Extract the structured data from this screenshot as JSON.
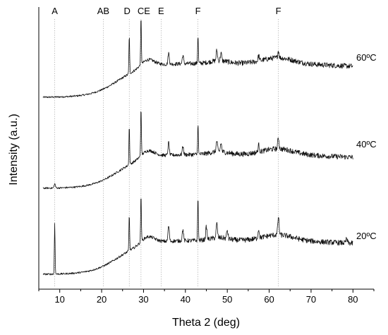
{
  "chart_data": {
    "type": "line",
    "xlabel": "Theta 2 (deg)",
    "ylabel": "Intensity (a.u.)",
    "xlim": [
      5,
      85
    ],
    "x_ticks": [
      10,
      20,
      30,
      40,
      50,
      60,
      70,
      80
    ],
    "y_ticks_shown": false,
    "grid": false,
    "legend": "none",
    "x_range_of_data": [
      6,
      80
    ],
    "phase_markers": [
      {
        "label": "A",
        "x": 8.8
      },
      {
        "label": "AB",
        "x": 20.4
      },
      {
        "label": "D",
        "x": 26.6
      },
      {
        "label": "CE",
        "x": 29.4
      },
      {
        "label": "E",
        "x": 34.2
      },
      {
        "label": "F",
        "x": 43.0
      },
      {
        "label": "F",
        "x": 62.2
      }
    ],
    "series": [
      {
        "name": "60ºC",
        "peaks": [
          {
            "x": 26.6,
            "height": 55
          },
          {
            "x": 29.4,
            "height": 68
          },
          {
            "x": 36.0,
            "height": 16
          },
          {
            "x": 39.4,
            "height": 12
          },
          {
            "x": 43.0,
            "height": 41
          },
          {
            "x": 47.5,
            "height": 15
          },
          {
            "x": 48.5,
            "height": 11
          },
          {
            "x": 57.5,
            "height": 8
          },
          {
            "x": 62.2,
            "height": 10
          }
        ]
      },
      {
        "name": "40ºC",
        "peaks": [
          {
            "x": 8.8,
            "height": 6
          },
          {
            "x": 26.6,
            "height": 56
          },
          {
            "x": 29.4,
            "height": 70
          },
          {
            "x": 36.0,
            "height": 18
          },
          {
            "x": 39.4,
            "height": 12
          },
          {
            "x": 43.0,
            "height": 44
          },
          {
            "x": 47.5,
            "height": 15
          },
          {
            "x": 48.5,
            "height": 12
          },
          {
            "x": 57.5,
            "height": 10
          },
          {
            "x": 62.2,
            "height": 16
          }
        ]
      },
      {
        "name": "20ºC",
        "peaks": [
          {
            "x": 8.8,
            "height": 72
          },
          {
            "x": 26.6,
            "height": 52
          },
          {
            "x": 29.4,
            "height": 68
          },
          {
            "x": 36.0,
            "height": 22
          },
          {
            "x": 39.4,
            "height": 16
          },
          {
            "x": 43.0,
            "height": 62
          },
          {
            "x": 45.0,
            "height": 18
          },
          {
            "x": 47.5,
            "height": 20
          },
          {
            "x": 50.0,
            "height": 12
          },
          {
            "x": 57.5,
            "height": 12
          },
          {
            "x": 62.2,
            "height": 26
          },
          {
            "x": 78.5,
            "height": 6
          }
        ]
      }
    ]
  }
}
